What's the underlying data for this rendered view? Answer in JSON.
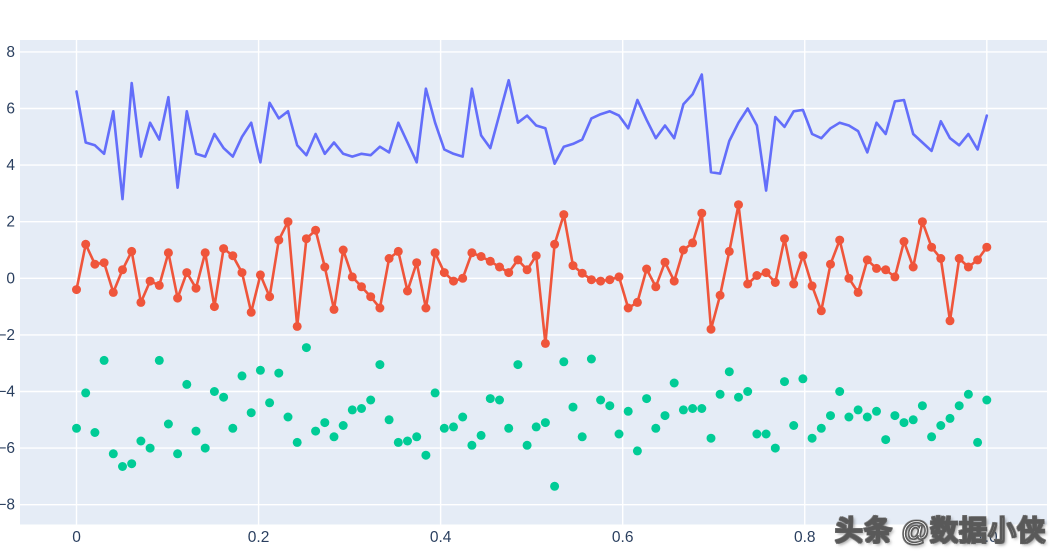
{
  "watermark": {
    "text": "头条 @数据小侠"
  },
  "figure": {
    "background_color": "#ffffff",
    "plot_background_color": "#E5ECF6",
    "grid_color": "#ffffff",
    "tick_label_color": "#2a3f5f",
    "x_tick_labels": [
      "0",
      "0.2",
      "0.4",
      "0.6",
      "0.8",
      "1.0"
    ],
    "y_tick_labels": [
      "8",
      "6",
      "4",
      "2",
      "0",
      "−2",
      "−4",
      "−6",
      "−8"
    ]
  },
  "chart_data": {
    "type": "line",
    "title": "",
    "xlabel": "",
    "ylabel": "",
    "grid": true,
    "legend": false,
    "xlim": [
      -0.06,
      1.07
    ],
    "ylim": [
      -8.7,
      8.4
    ],
    "xticks": [
      0,
      0.2,
      0.4,
      0.6,
      0.8,
      1.0
    ],
    "yticks": [
      8,
      6,
      4,
      2,
      0,
      -2,
      -4,
      -6,
      -8
    ],
    "n_points": 100,
    "x_start": 0,
    "x_end": 1,
    "series": [
      {
        "id": "blue-line",
        "mode": "lines",
        "color": "#636EFA",
        "center": 5,
        "values": [
          6.6,
          4.8,
          4.7,
          4.4,
          5.9,
          2.8,
          6.9,
          4.3,
          5.5,
          4.9,
          6.4,
          3.2,
          5.9,
          4.4,
          4.3,
          5.1,
          4.6,
          4.3,
          5.0,
          5.5,
          4.1,
          6.2,
          5.65,
          5.9,
          4.7,
          4.35,
          5.1,
          4.4,
          4.8,
          4.4,
          4.3,
          4.4,
          4.35,
          4.65,
          4.45,
          5.5,
          4.8,
          4.1,
          6.7,
          5.5,
          4.55,
          4.4,
          4.3,
          6.7,
          5.05,
          4.6,
          5.8,
          7.0,
          5.5,
          5.75,
          5.4,
          5.3,
          4.05,
          4.65,
          4.75,
          4.9,
          5.65,
          5.8,
          5.9,
          5.75,
          5.3,
          6.3,
          5.6,
          4.95,
          5.4,
          4.95,
          6.15,
          6.5,
          7.2,
          3.75,
          3.7,
          4.85,
          5.5,
          6.0,
          5.4,
          3.1,
          5.7,
          5.35,
          5.9,
          5.95,
          5.1,
          4.95,
          5.3,
          5.5,
          5.4,
          5.2,
          4.45,
          5.5,
          5.1,
          6.25,
          6.3,
          5.1,
          4.8,
          4.5,
          5.55,
          4.95,
          4.7,
          5.1,
          4.55,
          5.75
        ]
      },
      {
        "id": "red-line-markers",
        "mode": "lines+markers",
        "color": "#EF553B",
        "center": 0,
        "values": [
          -0.4,
          1.2,
          0.5,
          0.55,
          -0.5,
          0.3,
          0.95,
          -0.85,
          -0.1,
          -0.25,
          0.9,
          -0.7,
          0.2,
          -0.35,
          0.9,
          -1.0,
          1.05,
          0.8,
          0.2,
          -1.2,
          0.12,
          -0.65,
          1.35,
          2.0,
          -1.7,
          1.4,
          1.7,
          0.4,
          -1.1,
          1.0,
          0.05,
          -0.3,
          -0.65,
          -1.05,
          0.7,
          0.95,
          -0.45,
          0.55,
          -1.05,
          0.9,
          0.2,
          -0.1,
          0.0,
          0.9,
          0.77,
          0.6,
          0.4,
          0.2,
          0.65,
          0.3,
          0.8,
          -2.3,
          1.2,
          2.25,
          0.45,
          0.18,
          -0.05,
          -0.1,
          -0.05,
          0.05,
          -1.05,
          -0.85,
          0.33,
          -0.3,
          0.57,
          -0.1,
          1.0,
          1.25,
          2.3,
          -1.8,
          -0.6,
          0.95,
          2.6,
          -0.2,
          0.1,
          0.2,
          -0.15,
          1.4,
          -0.2,
          0.8,
          -0.27,
          -1.15,
          0.5,
          1.35,
          0.0,
          -0.5,
          0.65,
          0.35,
          0.3,
          0.05,
          1.3,
          0.4,
          2.0,
          1.1,
          0.7,
          -1.5,
          0.7,
          0.4,
          0.65,
          1.1
        ]
      },
      {
        "id": "green-scatter",
        "mode": "markers",
        "color": "#00CC96",
        "center": -5,
        "values": [
          -5.3,
          -4.05,
          -5.45,
          -2.9,
          -6.2,
          -6.65,
          -6.55,
          -5.75,
          -6.0,
          -2.9,
          -5.15,
          -6.2,
          -3.75,
          -5.4,
          -6.0,
          -4.0,
          -4.2,
          -5.3,
          -3.45,
          -4.75,
          -3.25,
          -4.4,
          -3.35,
          -4.9,
          -5.8,
          -2.45,
          -5.4,
          -5.1,
          -5.6,
          -5.2,
          -4.65,
          -4.6,
          -4.3,
          -3.05,
          -5.0,
          -5.8,
          -5.75,
          -5.6,
          -6.25,
          -4.05,
          -5.3,
          -5.25,
          -4.9,
          -5.9,
          -5.55,
          -4.25,
          -4.3,
          -5.3,
          -3.05,
          -5.9,
          -5.25,
          -5.1,
          -7.35,
          -2.95,
          -4.55,
          -5.6,
          -2.85,
          -4.3,
          -4.5,
          -5.5,
          -4.7,
          -6.1,
          -4.25,
          -5.3,
          -4.85,
          -3.7,
          -4.65,
          -4.6,
          -4.6,
          -5.65,
          -4.1,
          -3.3,
          -4.2,
          -4.0,
          -5.5,
          -5.5,
          -6.0,
          -3.65,
          -5.2,
          -3.55,
          -5.65,
          -5.3,
          -4.85,
          -4.0,
          -4.9,
          -4.65,
          -4.9,
          -4.7,
          -5.7,
          -4.85,
          -5.1,
          -5.0,
          -4.5,
          -5.6,
          -5.2,
          -4.95,
          -4.5,
          -4.1,
          -5.8,
          -4.3
        ]
      }
    ]
  }
}
